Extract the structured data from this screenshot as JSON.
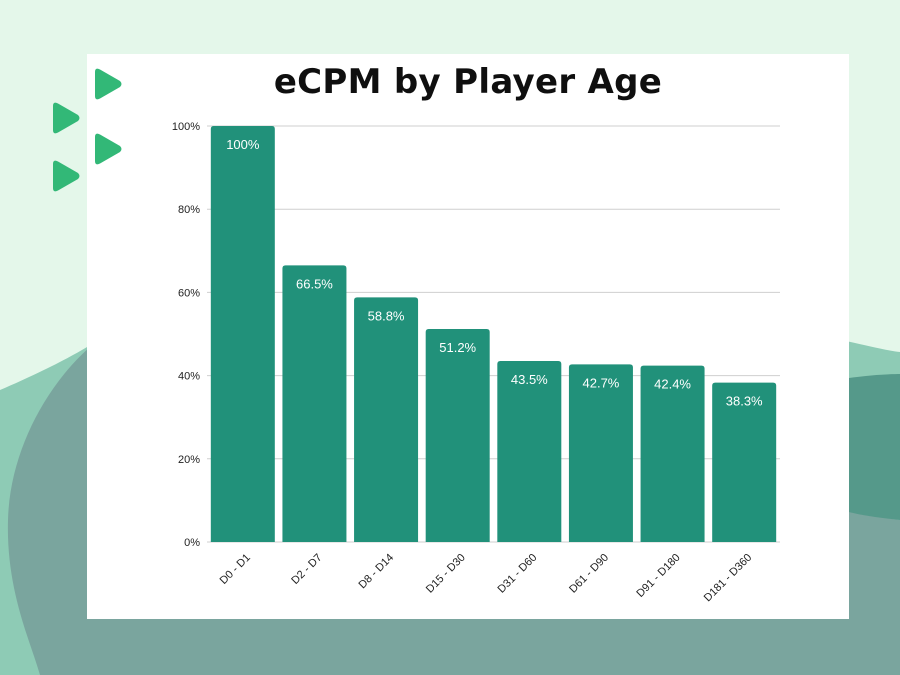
{
  "page": {
    "title": "eCPM by Player Age",
    "colors": {
      "bar": "#21917a",
      "background": "#e4f7ea",
      "wave_light": "#8ecbb5",
      "wave_mid": "#55998a",
      "wave_dark": "#7aa59e",
      "arrow": "#32b877",
      "grid": "#cfcfcf"
    },
    "decor": {
      "arrow_icon": "play-triangle"
    }
  },
  "chart_data": {
    "type": "bar",
    "title": "eCPM by Player Age",
    "categories": [
      "D0 - D1",
      "D2 - D7",
      "D8 - D14",
      "D15 - D30",
      "D31 - D60",
      "D61 - D90",
      "D91 - D180",
      "D181 - D360"
    ],
    "values": [
      100,
      66.5,
      58.8,
      51.2,
      43.5,
      42.7,
      42.4,
      38.3
    ],
    "value_labels": [
      "100%",
      "66.5%",
      "58.8%",
      "51.2%",
      "43.5%",
      "42.7%",
      "42.4%",
      "38.3%"
    ],
    "y_ticks": [
      0,
      20,
      40,
      60,
      80,
      100
    ],
    "y_tick_labels": [
      "0%",
      "20%",
      "40%",
      "60%",
      "80%",
      "100%"
    ],
    "ylim": [
      0,
      100
    ],
    "xlabel": "",
    "ylabel": "",
    "grid": true,
    "legend": "none"
  }
}
